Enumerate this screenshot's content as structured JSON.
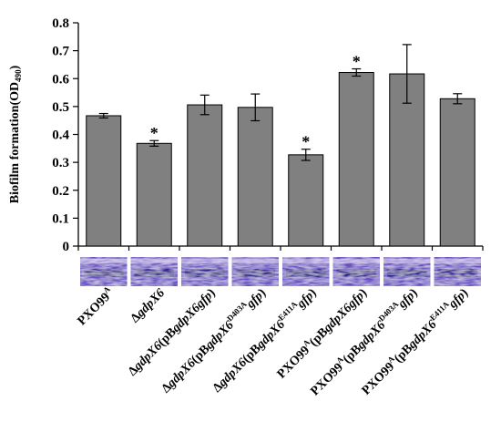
{
  "chart_data": {
    "type": "bar",
    "title": "",
    "ylabel": "Biofilm formation(OD490)",
    "ylabel_parts": [
      "Biofilm formation(OD",
      "490",
      ")"
    ],
    "xlabel": "",
    "ylim": [
      0,
      0.8
    ],
    "yticks": [
      "0",
      "0.1",
      "0.2",
      "0.3",
      "0.4",
      "0.5",
      "0.6",
      "0.7",
      "0.8"
    ],
    "categories": [
      "PXO99A",
      "ΔgdpX6",
      "ΔgdpX6(pBgdpX6gfp)",
      "ΔgdpX6(pBgdpX6D403Agfp)",
      "ΔgdpX6(pBgdpX6E411Agfp)",
      "PXO99A(pBgdpX6gfp)",
      "PXO99A(pBgdpX6D403Agfp)",
      "PXO99A(pBgdpX6E411Agfp)"
    ],
    "category_parts": [
      [
        [
          "PXO99",
          "n"
        ],
        [
          "A",
          "sup"
        ]
      ],
      [
        [
          "Δ",
          "n"
        ],
        [
          "gdpX6",
          "i"
        ]
      ],
      [
        [
          "Δ",
          "n"
        ],
        [
          "gdpX6",
          "i"
        ],
        [
          "(pB",
          "n"
        ],
        [
          "gdpX6gfp",
          "i"
        ],
        [
          ")",
          "n"
        ]
      ],
      [
        [
          "Δ",
          "n"
        ],
        [
          "gdpX6",
          "i"
        ],
        [
          "(pB",
          "n"
        ],
        [
          "gdpX6",
          "i"
        ],
        [
          "D403A",
          "sup"
        ],
        [
          "gfp",
          "i"
        ],
        [
          ")",
          "n"
        ]
      ],
      [
        [
          "Δ",
          "n"
        ],
        [
          "gdpX6",
          "i"
        ],
        [
          "(pB",
          "n"
        ],
        [
          "gdpX6",
          "i"
        ],
        [
          "E411A",
          "sup"
        ],
        [
          "gfp",
          "i"
        ],
        [
          ")",
          "n"
        ]
      ],
      [
        [
          "PXO99",
          "n"
        ],
        [
          "A",
          "sup"
        ],
        [
          "(pB",
          "n"
        ],
        [
          "gdpX6gfp",
          "i"
        ],
        [
          ")",
          "n"
        ]
      ],
      [
        [
          "PXO99",
          "n"
        ],
        [
          "A",
          "sup"
        ],
        [
          "(pB",
          "n"
        ],
        [
          "gdpX6",
          "i"
        ],
        [
          "D403A",
          "sup"
        ],
        [
          "gfp",
          "i"
        ],
        [
          ")",
          "n"
        ]
      ],
      [
        [
          "PXO99",
          "n"
        ],
        [
          "A",
          "sup"
        ],
        [
          "(pB",
          "n"
        ],
        [
          "gdpX6",
          "i"
        ],
        [
          "E411A",
          "sup"
        ],
        [
          "gfp",
          "i"
        ],
        [
          ")",
          "n"
        ]
      ]
    ],
    "values": [
      0.467,
      0.368,
      0.506,
      0.497,
      0.327,
      0.622,
      0.617,
      0.528
    ],
    "errors": [
      0.008,
      0.01,
      0.035,
      0.048,
      0.02,
      0.013,
      0.105,
      0.018
    ],
    "significance": [
      "",
      "*",
      "",
      "",
      "*",
      "*",
      "",
      ""
    ],
    "significance_marker": "*",
    "bar_color": "#808080",
    "bar_edge_color": "#000000",
    "stain_color": "#6a4fc4",
    "stain_dark_color": "#2b1f8a",
    "grid": false,
    "legend": "none"
  }
}
